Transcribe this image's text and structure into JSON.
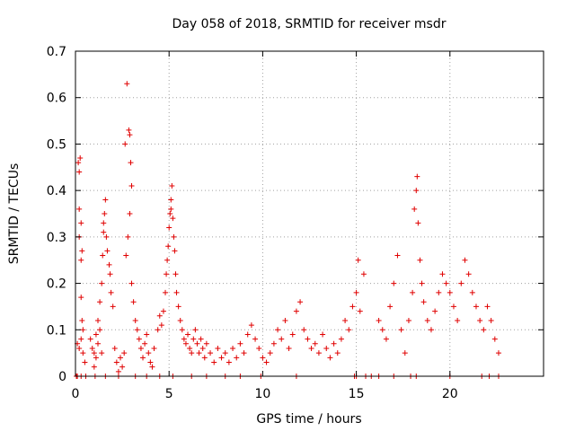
{
  "chart_data": {
    "type": "scatter",
    "title": "Day 058 of 2018, SRMTID for receiver msdr",
    "xlabel": "GPS time / hours",
    "ylabel": "SRMTID / TECUs",
    "xlim": [
      0,
      25
    ],
    "ylim": [
      0,
      0.7
    ],
    "x_ticks": [
      "0",
      "5",
      "10",
      "15",
      "20"
    ],
    "y_ticks": [
      "0",
      "0.1",
      "0.2",
      "0.3",
      "0.4",
      "0.5",
      "0.6",
      "0.7"
    ],
    "x_tick_values": [
      0,
      5,
      10,
      15,
      20
    ],
    "y_tick_values": [
      0,
      0.1,
      0.2,
      0.3,
      0.4,
      0.5,
      0.6,
      0.7
    ],
    "grid": true,
    "legend": "none",
    "marker": "+",
    "color": "#e00000",
    "series": [
      {
        "values": [
          [
            0.1,
            0.0
          ],
          [
            0.15,
            0.46
          ],
          [
            0.2,
            0.44
          ],
          [
            0.25,
            0.47
          ],
          [
            0.2,
            0.36
          ],
          [
            0.3,
            0.33
          ],
          [
            0.2,
            0.3
          ],
          [
            0.35,
            0.27
          ],
          [
            0.3,
            0.25
          ],
          [
            0.3,
            0.17
          ],
          [
            0.35,
            0.12
          ],
          [
            0.4,
            0.1
          ],
          [
            0.2,
            0.06
          ],
          [
            0.3,
            0.08
          ],
          [
            0.4,
            0.05
          ],
          [
            0.5,
            0.03
          ],
          [
            0.1,
            0.07
          ],
          [
            0.8,
            0.08
          ],
          [
            0.9,
            0.06
          ],
          [
            1.0,
            0.05
          ],
          [
            1.1,
            0.09
          ],
          [
            1.2,
            0.12
          ],
          [
            1.3,
            0.16
          ],
          [
            1.4,
            0.2
          ],
          [
            1.45,
            0.26
          ],
          [
            1.5,
            0.31
          ],
          [
            1.55,
            0.35
          ],
          [
            1.6,
            0.38
          ],
          [
            1.5,
            0.33
          ],
          [
            1.65,
            0.3
          ],
          [
            1.7,
            0.27
          ],
          [
            1.8,
            0.24
          ],
          [
            1.85,
            0.22
          ],
          [
            1.9,
            0.18
          ],
          [
            2.0,
            0.15
          ],
          [
            1.3,
            0.1
          ],
          [
            1.2,
            0.07
          ],
          [
            1.1,
            0.04
          ],
          [
            1.0,
            0.02
          ],
          [
            1.4,
            0.05
          ],
          [
            2.1,
            0.06
          ],
          [
            2.2,
            0.03
          ],
          [
            2.3,
            0.01
          ],
          [
            2.4,
            0.04
          ],
          [
            2.5,
            0.02
          ],
          [
            2.6,
            0.05
          ],
          [
            2.65,
            0.5
          ],
          [
            2.75,
            0.63
          ],
          [
            2.85,
            0.53
          ],
          [
            2.9,
            0.52
          ],
          [
            2.95,
            0.46
          ],
          [
            3.0,
            0.41
          ],
          [
            2.9,
            0.35
          ],
          [
            2.8,
            0.3
          ],
          [
            2.7,
            0.26
          ],
          [
            3.0,
            0.2
          ],
          [
            3.1,
            0.16
          ],
          [
            3.2,
            0.12
          ],
          [
            3.3,
            0.1
          ],
          [
            3.4,
            0.08
          ],
          [
            3.5,
            0.06
          ],
          [
            3.6,
            0.04
          ],
          [
            3.7,
            0.07
          ],
          [
            3.8,
            0.09
          ],
          [
            3.9,
            0.05
          ],
          [
            4.0,
            0.03
          ],
          [
            4.1,
            0.02
          ],
          [
            4.2,
            0.06
          ],
          [
            4.4,
            0.1
          ],
          [
            4.5,
            0.13
          ],
          [
            4.6,
            0.11
          ],
          [
            4.7,
            0.14
          ],
          [
            4.8,
            0.18
          ],
          [
            4.85,
            0.22
          ],
          [
            4.9,
            0.25
          ],
          [
            4.95,
            0.28
          ],
          [
            5.0,
            0.32
          ],
          [
            5.05,
            0.35
          ],
          [
            5.1,
            0.38
          ],
          [
            5.15,
            0.41
          ],
          [
            5.1,
            0.36
          ],
          [
            5.2,
            0.34
          ],
          [
            5.25,
            0.3
          ],
          [
            5.3,
            0.27
          ],
          [
            5.35,
            0.22
          ],
          [
            5.4,
            0.18
          ],
          [
            5.5,
            0.15
          ],
          [
            5.6,
            0.12
          ],
          [
            5.7,
            0.1
          ],
          [
            5.8,
            0.08
          ],
          [
            5.9,
            0.07
          ],
          [
            6.0,
            0.09
          ],
          [
            6.1,
            0.06
          ],
          [
            6.2,
            0.05
          ],
          [
            6.3,
            0.08
          ],
          [
            6.4,
            0.1
          ],
          [
            6.5,
            0.07
          ],
          [
            6.6,
            0.05
          ],
          [
            6.7,
            0.08
          ],
          [
            6.8,
            0.06
          ],
          [
            6.9,
            0.04
          ],
          [
            7.0,
            0.07
          ],
          [
            7.2,
            0.05
          ],
          [
            7.4,
            0.03
          ],
          [
            7.6,
            0.06
          ],
          [
            7.8,
            0.04
          ],
          [
            8.0,
            0.05
          ],
          [
            8.2,
            0.03
          ],
          [
            8.4,
            0.06
          ],
          [
            8.6,
            0.04
          ],
          [
            8.8,
            0.07
          ],
          [
            9.0,
            0.05
          ],
          [
            9.2,
            0.09
          ],
          [
            9.4,
            0.11
          ],
          [
            9.6,
            0.08
          ],
          [
            9.8,
            0.06
          ],
          [
            10.0,
            0.04
          ],
          [
            10.2,
            0.03
          ],
          [
            10.4,
            0.05
          ],
          [
            10.6,
            0.07
          ],
          [
            10.8,
            0.1
          ],
          [
            11.0,
            0.08
          ],
          [
            11.2,
            0.12
          ],
          [
            11.4,
            0.06
          ],
          [
            11.6,
            0.09
          ],
          [
            11.8,
            0.14
          ],
          [
            12.0,
            0.16
          ],
          [
            12.2,
            0.1
          ],
          [
            12.4,
            0.08
          ],
          [
            12.6,
            0.06
          ],
          [
            12.8,
            0.07
          ],
          [
            13.0,
            0.05
          ],
          [
            13.2,
            0.09
          ],
          [
            13.4,
            0.06
          ],
          [
            13.6,
            0.04
          ],
          [
            13.8,
            0.07
          ],
          [
            14.0,
            0.05
          ],
          [
            14.2,
            0.08
          ],
          [
            14.4,
            0.12
          ],
          [
            14.6,
            0.1
          ],
          [
            14.8,
            0.15
          ],
          [
            15.0,
            0.18
          ],
          [
            15.2,
            0.14
          ],
          [
            15.4,
            0.22
          ],
          [
            15.1,
            0.25
          ],
          [
            16.2,
            0.12
          ],
          [
            16.4,
            0.1
          ],
          [
            16.6,
            0.08
          ],
          [
            16.8,
            0.15
          ],
          [
            17.0,
            0.2
          ],
          [
            17.2,
            0.26
          ],
          [
            17.4,
            0.1
          ],
          [
            17.6,
            0.05
          ],
          [
            17.8,
            0.12
          ],
          [
            18.0,
            0.18
          ],
          [
            18.1,
            0.36
          ],
          [
            18.2,
            0.4
          ],
          [
            18.25,
            0.43
          ],
          [
            18.3,
            0.33
          ],
          [
            18.4,
            0.25
          ],
          [
            18.5,
            0.2
          ],
          [
            18.6,
            0.16
          ],
          [
            18.8,
            0.12
          ],
          [
            19.0,
            0.1
          ],
          [
            19.2,
            0.14
          ],
          [
            19.4,
            0.18
          ],
          [
            19.6,
            0.22
          ],
          [
            19.8,
            0.2
          ],
          [
            20.0,
            0.18
          ],
          [
            20.2,
            0.15
          ],
          [
            20.4,
            0.12
          ],
          [
            20.6,
            0.2
          ],
          [
            20.8,
            0.25
          ],
          [
            21.0,
            0.22
          ],
          [
            21.2,
            0.18
          ],
          [
            21.4,
            0.15
          ],
          [
            21.6,
            0.12
          ],
          [
            21.8,
            0.1
          ],
          [
            22.0,
            0.15
          ],
          [
            22.2,
            0.12
          ],
          [
            22.4,
            0.08
          ],
          [
            22.6,
            0.05
          ],
          [
            0.05,
            0.0
          ],
          [
            0.3,
            0.0
          ],
          [
            0.55,
            0.0
          ],
          [
            1.05,
            0.0
          ],
          [
            1.6,
            0.0
          ],
          [
            2.3,
            0.0
          ],
          [
            3.2,
            0.0
          ],
          [
            3.8,
            0.0
          ],
          [
            4.5,
            0.0
          ],
          [
            5.2,
            0.0
          ],
          [
            6.2,
            0.0
          ],
          [
            7.0,
            0.0
          ],
          [
            8.0,
            0.0
          ],
          [
            8.8,
            0.0
          ],
          [
            9.9,
            0.0
          ],
          [
            11.8,
            0.0
          ],
          [
            14.9,
            0.0
          ],
          [
            15.0,
            0.0
          ],
          [
            15.5,
            0.0
          ],
          [
            15.8,
            0.0
          ],
          [
            16.2,
            0.0
          ],
          [
            17.0,
            0.0
          ],
          [
            17.9,
            0.0
          ],
          [
            18.2,
            0.0
          ],
          [
            20.0,
            0.0
          ],
          [
            21.7,
            0.0
          ],
          [
            22.1,
            0.0
          ],
          [
            22.6,
            0.0
          ]
        ]
      }
    ]
  }
}
